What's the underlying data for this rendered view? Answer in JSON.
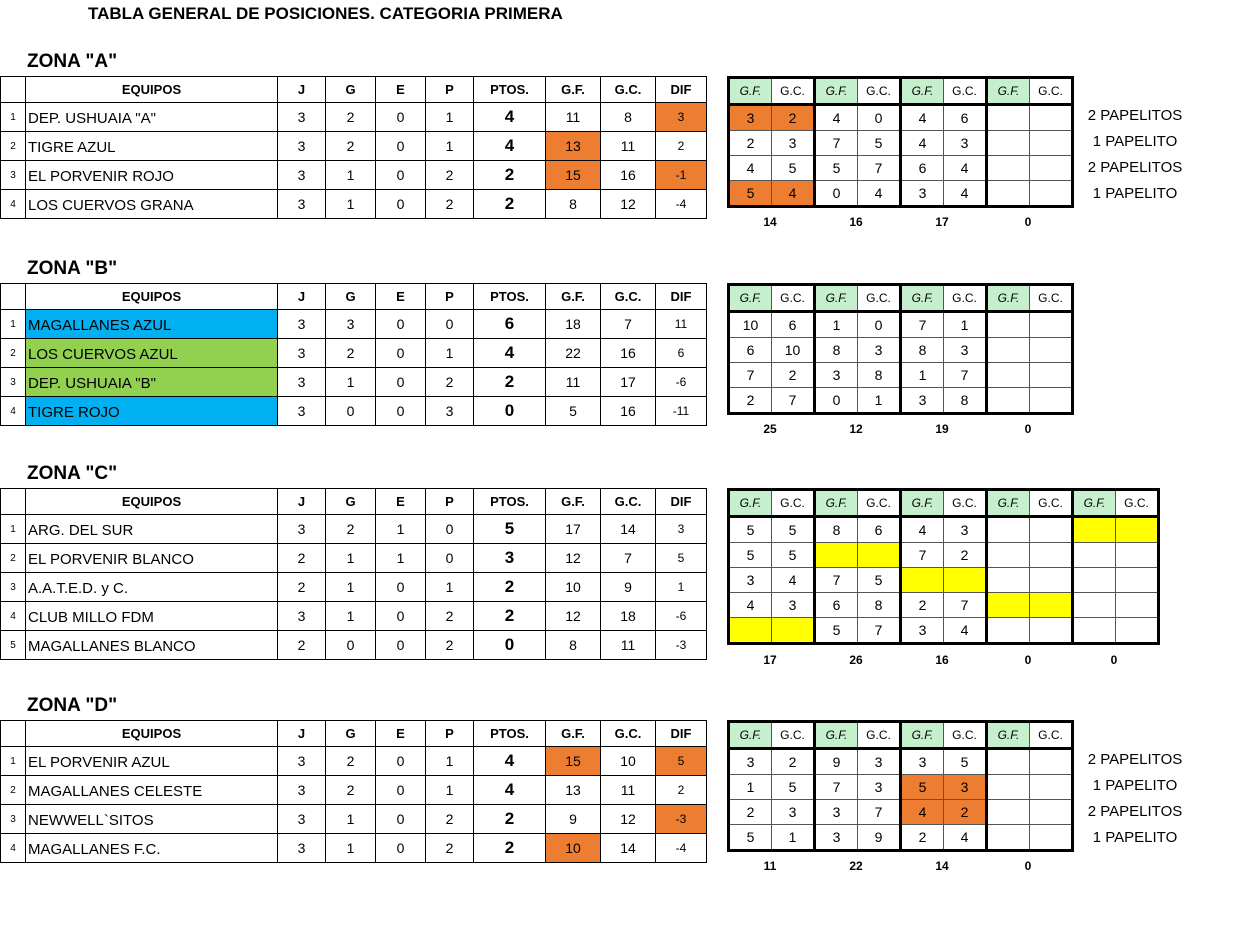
{
  "title": "TABLA GENERAL DE POSICIONES. CATEGORIA PRIMERA",
  "colors": {
    "orange": "#ed7d31",
    "yellow": "#ffff00",
    "blue": "#00b0f0",
    "green": "#92d050",
    "header_green": "#c6efce"
  },
  "headers": [
    "",
    "EQUIPOS",
    "J",
    "G",
    "E",
    "P",
    "PTOS.",
    "G.F.",
    "G.C.",
    "DIF"
  ],
  "result_headers": [
    "G.F.",
    "G.C."
  ],
  "zones": [
    {
      "title": "ZONA \"A\"",
      "rows": [
        {
          "num": "1",
          "team": "DEP. USHUAIA \"A\"",
          "j": "3",
          "g": "2",
          "e": "0",
          "p": "1",
          "pts": "4",
          "gf": "11",
          "gc": "8",
          "dif": "3",
          "fills": {
            "dif": "orange"
          }
        },
        {
          "num": "2",
          "team": "TIGRE AZUL",
          "j": "3",
          "g": "2",
          "e": "0",
          "p": "1",
          "pts": "4",
          "gf": "13",
          "gc": "11",
          "dif": "2",
          "fills": {
            "gf": "orange"
          }
        },
        {
          "num": "3",
          "team": "EL PORVENIR ROJO",
          "j": "3",
          "g": "1",
          "e": "0",
          "p": "2",
          "pts": "2",
          "gf": "15",
          "gc": "16",
          "dif": "-1",
          "fills": {
            "gf": "orange",
            "dif": "orange"
          }
        },
        {
          "num": "4",
          "team": "LOS CUERVOS GRANA",
          "j": "3",
          "g": "1",
          "e": "0",
          "p": "2",
          "pts": "2",
          "gf": "8",
          "gc": "12",
          "dif": "-4",
          "fills": {}
        }
      ],
      "results": {
        "pairs": 4,
        "rows": [
          {
            "cells": [
              "3",
              "2",
              "4",
              "0",
              "4",
              "6",
              "",
              ""
            ],
            "fills": {
              "0": "orange"
            }
          },
          {
            "cells": [
              "2",
              "3",
              "7",
              "5",
              "4",
              "3",
              "",
              ""
            ],
            "fills": {}
          },
          {
            "cells": [
              "4",
              "5",
              "5",
              "7",
              "6",
              "4",
              "",
              ""
            ],
            "fills": {}
          },
          {
            "cells": [
              "5",
              "4",
              "0",
              "4",
              "3",
              "4",
              "",
              ""
            ],
            "fills": {
              "0": "orange"
            }
          }
        ],
        "totals": [
          "14",
          "16",
          "17",
          "0"
        ]
      },
      "papelitos": [
        "2 PAPELITOS",
        "1 PAPELITO",
        "2 PAPELITOS",
        "1 PAPELITO"
      ]
    },
    {
      "title": "ZONA \"B\"",
      "rows": [
        {
          "num": "1",
          "team": "MAGALLANES AZUL",
          "j": "3",
          "g": "3",
          "e": "0",
          "p": "0",
          "pts": "6",
          "gf": "18",
          "gc": "7",
          "dif": "11",
          "fills": {
            "team": "blue"
          }
        },
        {
          "num": "2",
          "team": "LOS CUERVOS AZUL",
          "j": "3",
          "g": "2",
          "e": "0",
          "p": "1",
          "pts": "4",
          "gf": "22",
          "gc": "16",
          "dif": "6",
          "fills": {
            "team": "green"
          }
        },
        {
          "num": "3",
          "team": "DEP. USHUAIA \"B\"",
          "j": "3",
          "g": "1",
          "e": "0",
          "p": "2",
          "pts": "2",
          "gf": "11",
          "gc": "17",
          "dif": "-6",
          "fills": {
            "team": "green"
          }
        },
        {
          "num": "4",
          "team": "TIGRE ROJO",
          "j": "3",
          "g": "0",
          "e": "0",
          "p": "3",
          "pts": "0",
          "gf": "5",
          "gc": "16",
          "dif": "-11",
          "fills": {
            "team": "blue"
          }
        }
      ],
      "results": {
        "pairs": 4,
        "rows": [
          {
            "cells": [
              "10",
              "6",
              "1",
              "0",
              "7",
              "1",
              "",
              ""
            ],
            "fills": {}
          },
          {
            "cells": [
              "6",
              "10",
              "8",
              "3",
              "8",
              "3",
              "",
              ""
            ],
            "fills": {}
          },
          {
            "cells": [
              "7",
              "2",
              "3",
              "8",
              "1",
              "7",
              "",
              ""
            ],
            "fills": {}
          },
          {
            "cells": [
              "2",
              "7",
              "0",
              "1",
              "3",
              "8",
              "",
              ""
            ],
            "fills": {}
          }
        ],
        "totals": [
          "25",
          "12",
          "19",
          "0"
        ]
      },
      "papelitos": []
    },
    {
      "title": "ZONA \"C\"",
      "rows": [
        {
          "num": "1",
          "team": "ARG. DEL SUR",
          "j": "3",
          "g": "2",
          "e": "1",
          "p": "0",
          "pts": "5",
          "gf": "17",
          "gc": "14",
          "dif": "3",
          "fills": {}
        },
        {
          "num": "2",
          "team": "EL PORVENIR BLANCO",
          "j": "2",
          "g": "1",
          "e": "1",
          "p": "0",
          "pts": "3",
          "gf": "12",
          "gc": "7",
          "dif": "5",
          "fills": {}
        },
        {
          "num": "3",
          "team": "A.A.T.E.D. y C.",
          "j": "2",
          "g": "1",
          "e": "0",
          "p": "1",
          "pts": "2",
          "gf": "10",
          "gc": "9",
          "dif": "1",
          "fills": {}
        },
        {
          "num": "4",
          "team": "CLUB MILLO FDM",
          "j": "3",
          "g": "1",
          "e": "0",
          "p": "2",
          "pts": "2",
          "gf": "12",
          "gc": "18",
          "dif": "-6",
          "fills": {}
        },
        {
          "num": "5",
          "team": "MAGALLANES BLANCO",
          "j": "2",
          "g": "0",
          "e": "0",
          "p": "2",
          "pts": "0",
          "gf": "8",
          "gc": "11",
          "dif": "-3",
          "fills": {}
        }
      ],
      "results": {
        "pairs": 5,
        "rows": [
          {
            "cells": [
              "5",
              "5",
              "8",
              "6",
              "4",
              "3",
              "",
              "",
              "",
              ""
            ],
            "fills": {
              "4": "yellow"
            }
          },
          {
            "cells": [
              "5",
              "5",
              "",
              "",
              "7",
              "2",
              "",
              "",
              "",
              ""
            ],
            "fills": {
              "1": "yellow"
            }
          },
          {
            "cells": [
              "3",
              "4",
              "7",
              "5",
              "",
              "",
              "",
              "",
              "",
              ""
            ],
            "fills": {
              "2": "yellow"
            }
          },
          {
            "cells": [
              "4",
              "3",
              "6",
              "8",
              "2",
              "7",
              "",
              "",
              "",
              ""
            ],
            "fills": {
              "3": "yellow"
            }
          },
          {
            "cells": [
              "",
              "",
              "5",
              "7",
              "3",
              "4",
              "",
              "",
              "",
              ""
            ],
            "fills": {
              "0": "yellow"
            }
          }
        ],
        "totals": [
          "17",
          "26",
          "16",
          "0",
          "0"
        ]
      },
      "papelitos": []
    },
    {
      "title": "ZONA \"D\"",
      "rows": [
        {
          "num": "1",
          "team": "EL PORVENIR AZUL",
          "j": "3",
          "g": "2",
          "e": "0",
          "p": "1",
          "pts": "4",
          "gf": "15",
          "gc": "10",
          "dif": "5",
          "fills": {
            "gf": "orange",
            "dif": "orange"
          }
        },
        {
          "num": "2",
          "team": "MAGALLANES CELESTE",
          "j": "3",
          "g": "2",
          "e": "0",
          "p": "1",
          "pts": "4",
          "gf": "13",
          "gc": "11",
          "dif": "2",
          "fills": {}
        },
        {
          "num": "3",
          "team": "NEWWELL`SITOS",
          "j": "3",
          "g": "1",
          "e": "0",
          "p": "2",
          "pts": "2",
          "gf": "9",
          "gc": "12",
          "dif": "-3",
          "fills": {
            "dif": "orange"
          }
        },
        {
          "num": "4",
          "team": "MAGALLANES F.C.",
          "j": "3",
          "g": "1",
          "e": "0",
          "p": "2",
          "pts": "2",
          "gf": "10",
          "gc": "14",
          "dif": "-4",
          "fills": {
            "gf": "orange"
          }
        }
      ],
      "results": {
        "pairs": 4,
        "rows": [
          {
            "cells": [
              "3",
              "2",
              "9",
              "3",
              "3",
              "5",
              "",
              ""
            ],
            "fills": {}
          },
          {
            "cells": [
              "1",
              "5",
              "7",
              "3",
              "5",
              "3",
              "",
              ""
            ],
            "fills": {
              "2": "orange"
            }
          },
          {
            "cells": [
              "2",
              "3",
              "3",
              "7",
              "4",
              "2",
              "",
              ""
            ],
            "fills": {
              "2": "orange"
            }
          },
          {
            "cells": [
              "5",
              "1",
              "3",
              "9",
              "2",
              "4",
              "",
              ""
            ],
            "fills": {}
          }
        ],
        "totals": [
          "11",
          "22",
          "14",
          "0"
        ]
      },
      "papelitos": [
        "2 PAPELITOS",
        "1 PAPELITO",
        "2 PAPELITOS",
        "1 PAPELITO"
      ]
    }
  ]
}
